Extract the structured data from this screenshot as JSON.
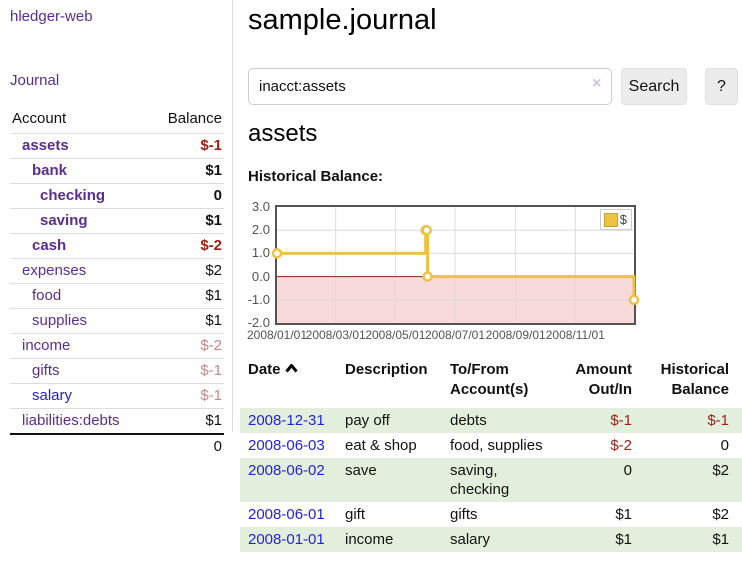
{
  "app": {
    "title": "hledger-web"
  },
  "sidebar": {
    "journal_link": "Journal",
    "accounts": {
      "header_account": "Account",
      "header_balance": "Balance",
      "rows": [
        {
          "name": "assets",
          "balance": "$-1",
          "depth": 1,
          "bold": true,
          "balance_style": "neg-strong",
          "link_style": "purple"
        },
        {
          "name": "bank",
          "balance": "$1",
          "depth": 2,
          "bold": true,
          "balance_style": "normal",
          "link_style": "purple"
        },
        {
          "name": "checking",
          "balance": "0",
          "depth": 3,
          "bold": true,
          "balance_style": "normal",
          "link_style": "purple"
        },
        {
          "name": "saving",
          "balance": "$1",
          "depth": 3,
          "bold": true,
          "balance_style": "normal",
          "link_style": "purple"
        },
        {
          "name": "cash",
          "balance": "$-2",
          "depth": 2,
          "bold": true,
          "balance_style": "neg-strong",
          "link_style": "purple"
        },
        {
          "name": "expenses",
          "balance": "$2",
          "depth": 1,
          "bold": false,
          "balance_style": "normal",
          "link_style": "purple"
        },
        {
          "name": "food",
          "balance": "$1",
          "depth": 2,
          "bold": false,
          "balance_style": "normal",
          "link_style": "purple"
        },
        {
          "name": "supplies",
          "balance": "$1",
          "depth": 2,
          "bold": false,
          "balance_style": "normal",
          "link_style": "purple"
        },
        {
          "name": "income",
          "balance": "$-2",
          "depth": 1,
          "bold": false,
          "balance_style": "neg-soft",
          "link_style": "purple"
        },
        {
          "name": "gifts",
          "balance": "$-1",
          "depth": 2,
          "bold": false,
          "balance_style": "neg-soft",
          "link_style": "purple"
        },
        {
          "name": "salary",
          "balance": "$-1",
          "depth": 2,
          "bold": false,
          "balance_style": "neg-soft",
          "link_style": "blue"
        },
        {
          "name": "liabilities:debts",
          "balance": "$1",
          "depth": 1,
          "bold": false,
          "balance_style": "normal",
          "link_style": "purple"
        }
      ],
      "total": "0"
    }
  },
  "header": {
    "title": "sample.journal"
  },
  "search": {
    "value": "inacct:assets",
    "clear_icon": "×",
    "button_label": "Search",
    "help_label": "?"
  },
  "main": {
    "account_heading": "assets",
    "chart_title": "Historical Balance:"
  },
  "chart_data": {
    "type": "line",
    "steps": true,
    "title": "Historical Balance",
    "legend_position": "top-right",
    "grid": true,
    "ylim": [
      -2.0,
      3.0
    ],
    "xlim_days": [
      0,
      365
    ],
    "y_ticks": [
      {
        "label": "3.0",
        "v": 3
      },
      {
        "label": "2.0",
        "v": 2
      },
      {
        "label": "1.0",
        "v": 1
      },
      {
        "label": "0.0",
        "v": 0
      },
      {
        "label": "-1.0",
        "v": -1
      },
      {
        "label": "-2.0",
        "v": -2
      }
    ],
    "x_ticks": [
      {
        "label": "2008/01/01",
        "day": 0
      },
      {
        "label": "2008/03/01",
        "day": 60
      },
      {
        "label": "2008/05/01",
        "day": 121
      },
      {
        "label": "2008/07/01",
        "day": 182
      },
      {
        "label": "2008/09/01",
        "day": 244
      },
      {
        "label": "2008/11/01",
        "day": 305
      }
    ],
    "series": [
      {
        "name": "$",
        "color": "#edc240",
        "points": [
          {
            "date": "2008-01-01",
            "day": 0,
            "y": 1
          },
          {
            "date": "2008-06-01",
            "day": 152,
            "y": 2
          },
          {
            "date": "2008-06-02",
            "day": 153,
            "y": 2
          },
          {
            "date": "2008-06-03",
            "day": 154,
            "y": 0
          },
          {
            "date": "2008-12-31",
            "day": 365,
            "y": -1
          }
        ]
      }
    ],
    "negative_region_fill": "#f9dada",
    "zero_line_color": "#8b1a1a"
  },
  "register": {
    "headers": {
      "date": "Date",
      "description": "Description",
      "accounts": "To/From\nAccount(s)",
      "amount": "Amount\nOut/In",
      "balance": "Historical\nBalance"
    },
    "rows": [
      {
        "date": "2008-12-31",
        "description": "pay off",
        "accounts": "debts",
        "amount": "$-1",
        "amount_neg": true,
        "balance": "$-1",
        "balance_neg": true,
        "shaded": true
      },
      {
        "date": "2008-06-03",
        "description": "eat & shop",
        "accounts": "food, supplies",
        "amount": "$-2",
        "amount_neg": true,
        "balance": "0",
        "balance_neg": false,
        "shaded": false
      },
      {
        "date": "2008-06-02",
        "description": "save",
        "accounts": "saving,\nchecking",
        "amount": "0",
        "amount_neg": false,
        "balance": "$2",
        "balance_neg": false,
        "shaded": true
      },
      {
        "date": "2008-06-01",
        "description": "gift",
        "accounts": "gifts",
        "amount": "$1",
        "amount_neg": false,
        "balance": "$2",
        "balance_neg": false,
        "shaded": false
      },
      {
        "date": "2008-01-01",
        "description": "income",
        "accounts": "salary",
        "amount": "$1",
        "amount_neg": false,
        "balance": "$1",
        "balance_neg": false,
        "shaded": true
      }
    ]
  },
  "colors": {
    "link_purple": "#5c2d91",
    "link_blue": "#2323d6",
    "negative_strong": "#9e1f13",
    "negative_soft": "#c88888",
    "row_shade_green": "#e3efdd",
    "chart_series_yellow": "#edc240",
    "chart_negative_pink": "#f9dada",
    "chart_zero_line": "#8b1a1a",
    "chart_border": "#545454"
  }
}
